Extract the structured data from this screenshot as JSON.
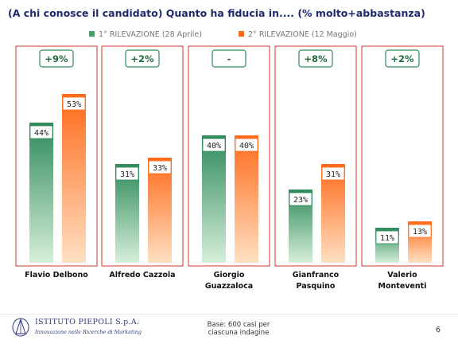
{
  "title": "(A chi conosce il candidato) Quanto ha fiducia in.... (% molto+abbastanza)",
  "legend": {
    "first": "1° RILEVAZIONE (28 Aprile)",
    "second": "2° RILEVAZIONE (12 Maggio)"
  },
  "colors": {
    "first_top": "#2e8a5a",
    "first_bottom": "#d6efd9",
    "second_top": "#ff6a1a",
    "second_bottom": "#ffe0c2",
    "panel_border": "#c83a2a",
    "badge_border": "#2e8a5a",
    "badge_text": "#1f6b3a",
    "title": "#1f2a6e"
  },
  "chart_data": {
    "type": "bar",
    "title": "(A chi conosce il candidato) Quanto ha fiducia in.... (% molto+abbastanza)",
    "categories": [
      "Flavio Delbono",
      "Alfredo Cazzola",
      "Giorgio Guazzaloca",
      "Gianfranco Pasquino",
      "Valerio Monteventi"
    ],
    "series": [
      {
        "name": "1° RILEVAZIONE (28 Aprile)",
        "values": [
          44,
          31,
          40,
          23,
          11
        ]
      },
      {
        "name": "2° RILEVAZIONE (12 Maggio)",
        "values": [
          53,
          33,
          40,
          31,
          13
        ]
      }
    ],
    "value_labels": {
      "first": [
        "44%",
        "31%",
        "40%",
        "23%",
        "11%"
      ],
      "second": [
        "53%",
        "33%",
        "40%",
        "31%",
        "13%"
      ]
    },
    "changes": [
      "+9%",
      "+2%",
      "-",
      "+8%",
      "+2%"
    ],
    "category_lines": [
      [
        "Flavio Delbono"
      ],
      [
        "Alfredo Cazzola"
      ],
      [
        "Giorgio",
        "Guazzaloca"
      ],
      [
        "Gianfranco",
        "Pasquino"
      ],
      [
        "Valerio",
        "Monteventi"
      ]
    ],
    "ylim": [
      0,
      60
    ],
    "legend_position": "top",
    "grid": false
  },
  "footer": {
    "logo_name": "ISTITUTO PIEPOLI S.p.A.",
    "logo_tagline": "Innovazione nelle Ricerche di Marketing",
    "note_line1": "Base: 600 casi per",
    "note_line2": "ciascuna indagine",
    "page_number": "6"
  }
}
